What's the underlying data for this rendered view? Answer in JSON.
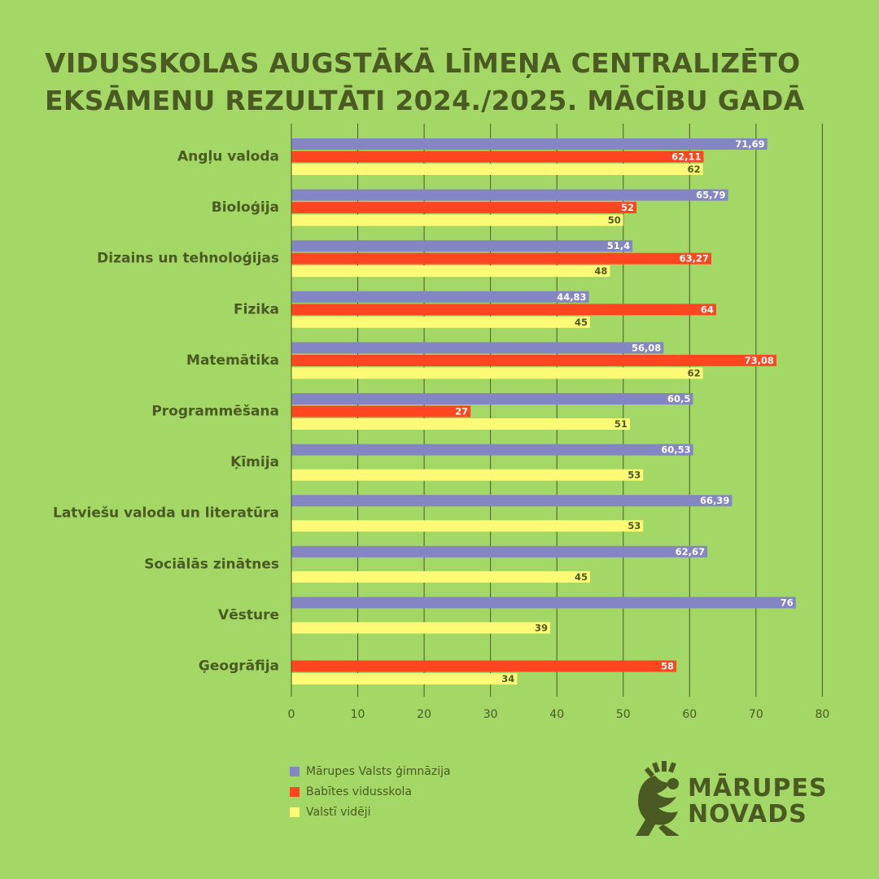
{
  "title": {
    "line1": "VIDUSSKOLAS AUGSTĀKĀ LĪMEŅA CENTRALIZĒTO",
    "line2": "EKSĀMENU REZULTĀTI 2024./2025. MĀCĪBU GADĀ"
  },
  "colors": {
    "background": "#a3d866",
    "text": "#4a5a22",
    "grid": "#4a5a22",
    "series1": "#8486c3",
    "series2": "#ff4620",
    "series3": "#fdfb75",
    "label_light": "#ffffff",
    "label_dark": "#4a5a22"
  },
  "chart_data": {
    "type": "bar",
    "orientation": "horizontal",
    "title": "VIDUSSKOLAS AUGSTĀKĀ LĪMEŅA CENTRALIZĒTO EKSĀMENU REZULTĀTI 2024./2025. MĀCĪBU GADĀ",
    "xlabel": "",
    "ylabel": "",
    "xlim": [
      0,
      80
    ],
    "xticks": [
      0,
      10,
      20,
      30,
      40,
      50,
      60,
      70,
      80
    ],
    "grid": true,
    "legend_position": "bottom-left",
    "categories": [
      "Angļu valoda",
      "Bioloģija",
      "Dizains un tehnoloģijas",
      "Fizika",
      "Matemātika",
      "Programmēšana",
      "Ķīmija",
      "Latviešu valoda un literatūra",
      "Sociālās zinātnes",
      "Vēsture",
      "Ģeogrāfija"
    ],
    "series": [
      {
        "name": "Mārupes Valsts ģimnāzija",
        "color": "#8486c3",
        "values": [
          71.69,
          65.79,
          51.4,
          44.83,
          56.08,
          60.5,
          60.53,
          66.39,
          62.67,
          76,
          null
        ],
        "labels": [
          "71,69",
          "65,79",
          "51,4",
          "44,83",
          "56,08",
          "60,5",
          "60,53",
          "66,39",
          "62,67",
          "76",
          ""
        ]
      },
      {
        "name": "Babītes vidusskola",
        "color": "#ff4620",
        "values": [
          62.11,
          52,
          63.27,
          64,
          73.08,
          27,
          null,
          null,
          null,
          null,
          58
        ],
        "labels": [
          "62,11",
          "52",
          "63,27",
          "64",
          "73,08",
          "27",
          "",
          "",
          "",
          "",
          "58"
        ]
      },
      {
        "name": "Valstī vidēji",
        "color": "#fdfb75",
        "values": [
          62,
          50,
          48,
          45,
          62,
          51,
          53,
          53,
          45,
          39,
          34
        ],
        "labels": [
          "62",
          "50",
          "48",
          "45",
          "62",
          "51",
          "53",
          "53",
          "45",
          "39",
          "34"
        ]
      }
    ]
  },
  "legend": [
    {
      "label": "Mārupes Valsts ģimnāzija",
      "color": "#8486c3"
    },
    {
      "label": "Babītes vidusskola",
      "color": "#ff4620"
    },
    {
      "label": "Valstī vidēji",
      "color": "#fdfb75"
    }
  ],
  "logo": {
    "line1": "MĀRUPES",
    "line2": "NOVADS"
  }
}
